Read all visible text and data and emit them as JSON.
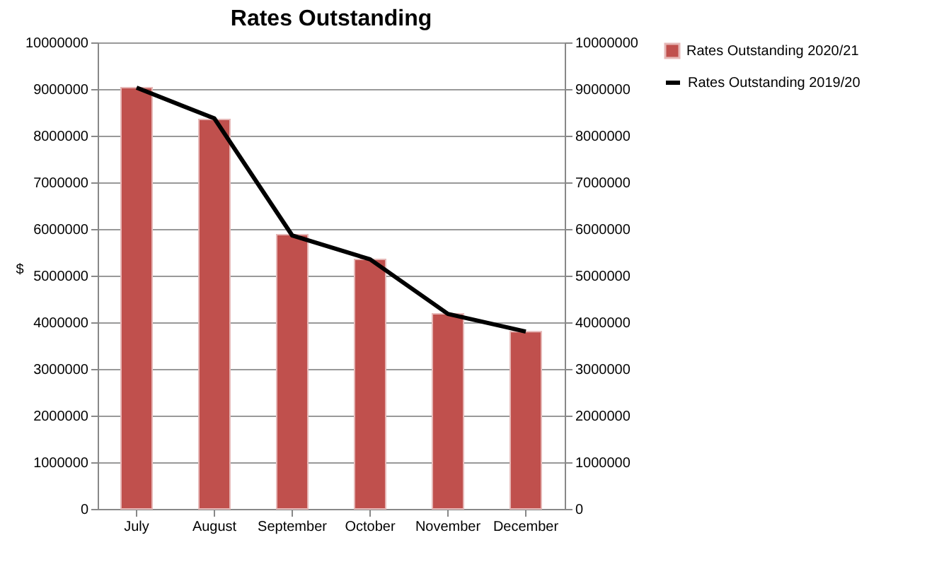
{
  "chart_data": {
    "type": "bar",
    "title": "Rates Outstanding",
    "ylabel": "$",
    "categories": [
      "July",
      "August",
      "September",
      "October",
      "November",
      "December"
    ],
    "series": [
      {
        "name": "Rates Outstanding 2020/21",
        "color": "#c0504d",
        "values": [
          9030000,
          8350000,
          5880000,
          5350000,
          4180000,
          3800000
        ]
      },
      {
        "name": "Rates Outstanding 2019/20",
        "type": "line",
        "axis": "y2",
        "color": "#000000",
        "values": [
          9030000,
          8370000,
          5860000,
          5350000,
          4180000,
          3800000
        ]
      }
    ],
    "ylim": [
      0,
      10000000
    ],
    "yticks": [
      0,
      1000000,
      2000000,
      3000000,
      4000000,
      5000000,
      6000000,
      7000000,
      8000000,
      9000000,
      10000000
    ],
    "y2lim": [
      0,
      10000000
    ],
    "y2ticks": [
      0,
      1000000,
      2000000,
      3000000,
      4000000,
      5000000,
      6000000,
      7000000,
      8000000,
      9000000,
      10000000
    ],
    "grid": "y",
    "legend": "right",
    "marker": "none",
    "line_style": "solid"
  }
}
